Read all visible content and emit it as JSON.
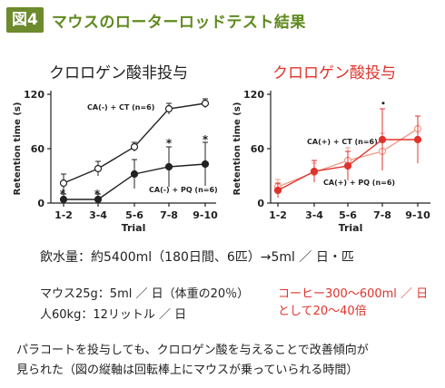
{
  "header": {
    "badge": "図4",
    "title": "マウスのローターロッドテスト結果"
  },
  "chart_data": [
    {
      "type": "line",
      "title": "クロロゲン酸非投与",
      "ylabel": "Retention time (s)",
      "xlabel": "Trial",
      "categories": [
        "1-2",
        "3-4",
        "5-6",
        "7-8",
        "9-10"
      ],
      "ylim": [
        0,
        120
      ],
      "yticks": [
        0,
        60,
        120
      ],
      "series": [
        {
          "name": "CA(-) + CT (n=6)",
          "marker": "open",
          "color": "#222222",
          "values": [
            22,
            38,
            62,
            104,
            110
          ],
          "errors": [
            10,
            8,
            5,
            6,
            5
          ]
        },
        {
          "name": "CA(-) + PQ (n=6)",
          "marker": "filled",
          "color": "#222222",
          "values": [
            4,
            4,
            32,
            40,
            43
          ],
          "errors": [
            6,
            6,
            16,
            22,
            24
          ]
        }
      ],
      "annotations": [
        "*",
        "*",
        "*",
        "*"
      ]
    },
    {
      "type": "line",
      "title": "クロロゲン酸投与",
      "ylabel": "Retention time (s)",
      "xlabel": "Trial",
      "categories": [
        "1-2",
        "3-4",
        "5-6",
        "7-8",
        "9-10"
      ],
      "ylim": [
        0,
        120
      ],
      "yticks": [
        0,
        60,
        120
      ],
      "series": [
        {
          "name": "CA(+) + CT (n=6)",
          "marker": "open",
          "color": "#f29b8a",
          "values": [
            18,
            34,
            47,
            57,
            82
          ],
          "errors": [
            8,
            10,
            14,
            20,
            14
          ]
        },
        {
          "name": "CA(+) + PQ (n=6)",
          "marker": "filled",
          "color": "#e0332c",
          "values": [
            14,
            35,
            41,
            70,
            70
          ],
          "errors": [
            8,
            12,
            16,
            34,
            26
          ]
        }
      ],
      "annotations": [
        "・"
      ]
    }
  ],
  "notes": {
    "water": "飲水量：約5400ml（180日間、6匹）→5ml ／ 日・匹",
    "mouse": "マウス25g：5ml ／ 日（体重の20％）",
    "human": "人60kg：12リットル ／ 日",
    "coffee_line1": "コーヒー300〜600ml ／ 日",
    "coffee_line2": "として20〜40倍",
    "caption_line1": "パラコートを投与しても、クロロゲン酸を与えることで改善傾向が",
    "caption_line2": "見られた（図の縦軸は回転棒上にマウスが乗っていられる時間）"
  }
}
